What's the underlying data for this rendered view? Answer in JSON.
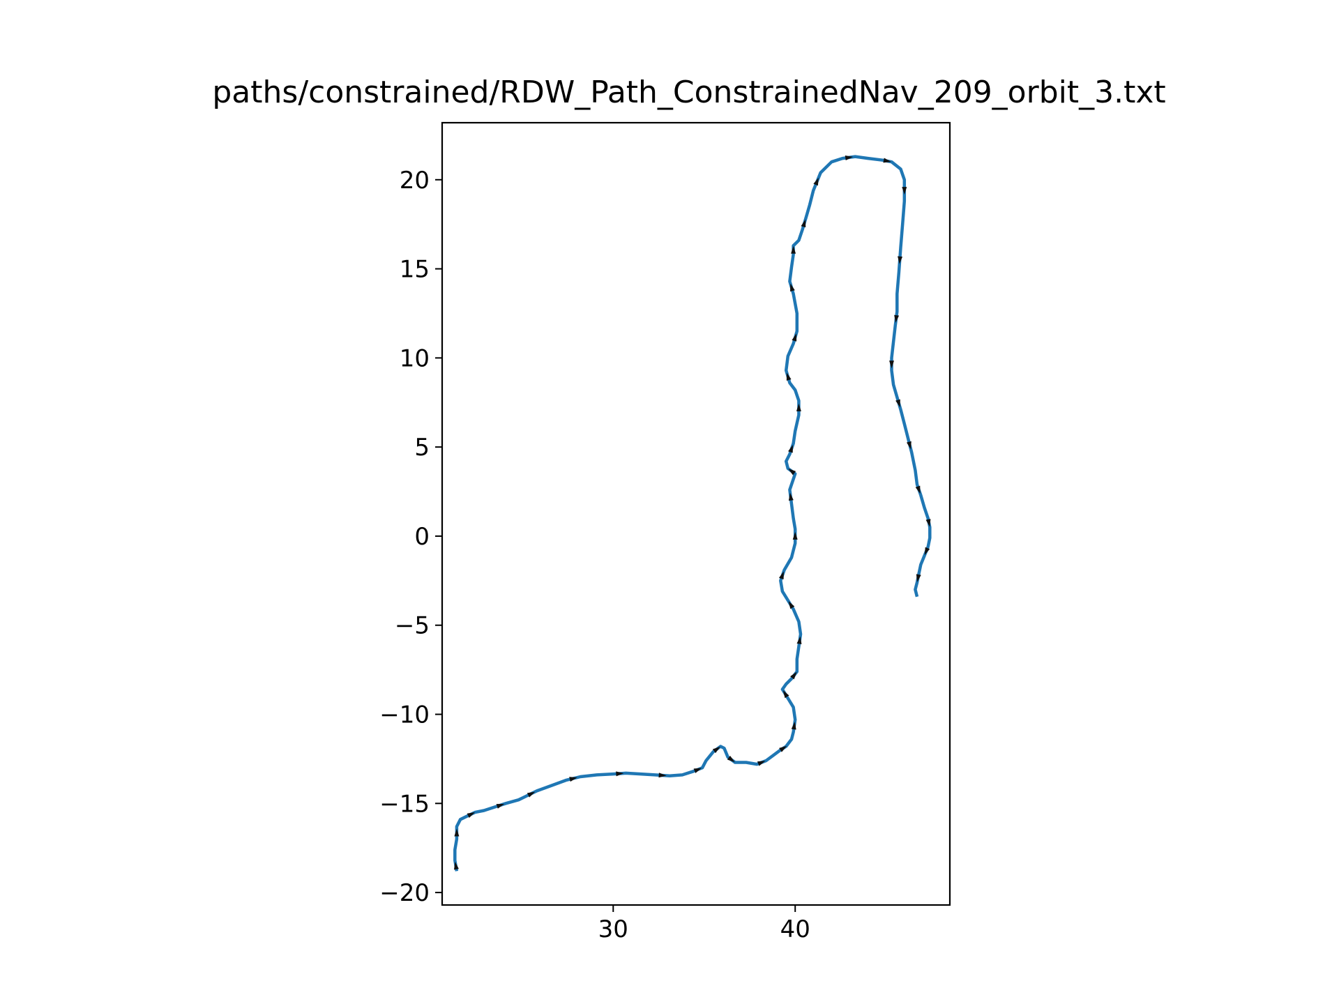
{
  "chart_data": {
    "type": "line",
    "title": "paths/constrained/RDW_Path_ConstrainedNav_209_orbit_3.txt",
    "xlabel": "",
    "ylabel": "",
    "xlim": [
      20.6,
      48.5
    ],
    "ylim": [
      -20.7,
      23.2
    ],
    "grid": false,
    "legend": "none",
    "x_ticks": [
      30,
      40
    ],
    "y_ticks": [
      20,
      15,
      10,
      5,
      0,
      -5,
      -10,
      -15,
      -20
    ],
    "x_tick_labels": [
      "30",
      "40"
    ],
    "y_tick_labels": [
      "20",
      "15",
      "10",
      "5",
      "0",
      "−5",
      "−10",
      "−15",
      "−20"
    ],
    "line_color": "#1f77b4",
    "arrow_color": "#111111",
    "series": [
      {
        "x": [
          21.4,
          21.3,
          21.3,
          21.4,
          21.4,
          21.6,
          22.0,
          22.4,
          22.9,
          23.5,
          24.1,
          24.8,
          25.2,
          25.8,
          26.6,
          27.4,
          28.2,
          29.1,
          30.0,
          30.7,
          31.5,
          32.3,
          33.1,
          33.8,
          34.4,
          34.9,
          35.1,
          35.5,
          35.9,
          36.1,
          36.3,
          36.7,
          37.3,
          37.9,
          38.4,
          38.8,
          39.2,
          39.5,
          39.8,
          39.9,
          40.0,
          39.9,
          39.6,
          39.3,
          39.5,
          39.8,
          40.1,
          40.1,
          40.2,
          40.3,
          40.2,
          39.9,
          39.6,
          39.3,
          39.2,
          39.4,
          39.8,
          40.0,
          40.0,
          39.9,
          39.8,
          39.7,
          39.9,
          40.0,
          39.6,
          39.5,
          39.7,
          39.9,
          40.0,
          40.2,
          40.2,
          40.0,
          39.7,
          39.5,
          39.6,
          39.9,
          40.1,
          40.1,
          39.9,
          39.7,
          39.8,
          39.9,
          39.9,
          40.2,
          40.4,
          40.6,
          40.8,
          41.0,
          41.4,
          42.0,
          42.6,
          43.3,
          44.0,
          44.8,
          45.3,
          45.8,
          46.0,
          46.0,
          45.9,
          45.8,
          45.7,
          45.6,
          45.6,
          45.5,
          45.4,
          45.3,
          45.3,
          45.4,
          45.6,
          45.8,
          46.0,
          46.2,
          46.4,
          46.6,
          46.7,
          46.9,
          47.1,
          47.3,
          47.4,
          47.4,
          47.3,
          47.1,
          46.9,
          46.8,
          46.7,
          46.6,
          46.7
        ],
        "y": [
          -18.8,
          -18.2,
          -17.6,
          -17.0,
          -16.3,
          -15.9,
          -15.7,
          -15.5,
          -15.4,
          -15.2,
          -15.0,
          -14.8,
          -14.6,
          -14.3,
          -14.0,
          -13.7,
          -13.5,
          -13.4,
          -13.35,
          -13.3,
          -13.35,
          -13.4,
          -13.45,
          -13.4,
          -13.2,
          -13.0,
          -12.6,
          -12.1,
          -11.8,
          -11.9,
          -12.4,
          -12.7,
          -12.7,
          -12.8,
          -12.6,
          -12.3,
          -12.0,
          -11.8,
          -11.4,
          -11.0,
          -10.3,
          -9.6,
          -9.1,
          -8.6,
          -8.3,
          -8.0,
          -7.6,
          -6.9,
          -6.2,
          -5.5,
          -4.8,
          -4.1,
          -3.6,
          -3.1,
          -2.5,
          -1.9,
          -1.2,
          -0.4,
          0.4,
          1.0,
          1.8,
          2.6,
          3.2,
          3.5,
          3.8,
          4.2,
          4.6,
          5.2,
          5.9,
          6.8,
          7.6,
          8.2,
          8.6,
          9.3,
          10.1,
          10.8,
          11.5,
          12.5,
          13.6,
          14.3,
          15.1,
          15.8,
          16.3,
          16.6,
          17.2,
          17.9,
          18.6,
          19.4,
          20.4,
          21.0,
          21.2,
          21.3,
          21.2,
          21.1,
          21.0,
          20.6,
          20.0,
          18.8,
          17.5,
          16.2,
          14.8,
          13.6,
          12.6,
          11.8,
          10.9,
          10.0,
          9.3,
          8.5,
          7.8,
          7.1,
          6.3,
          5.5,
          4.7,
          3.7,
          2.9,
          2.3,
          1.6,
          1.0,
          0.5,
          -0.1,
          -0.6,
          -1.1,
          -1.6,
          -2.1,
          -2.6,
          -3.0,
          -3.4
        ]
      }
    ]
  }
}
